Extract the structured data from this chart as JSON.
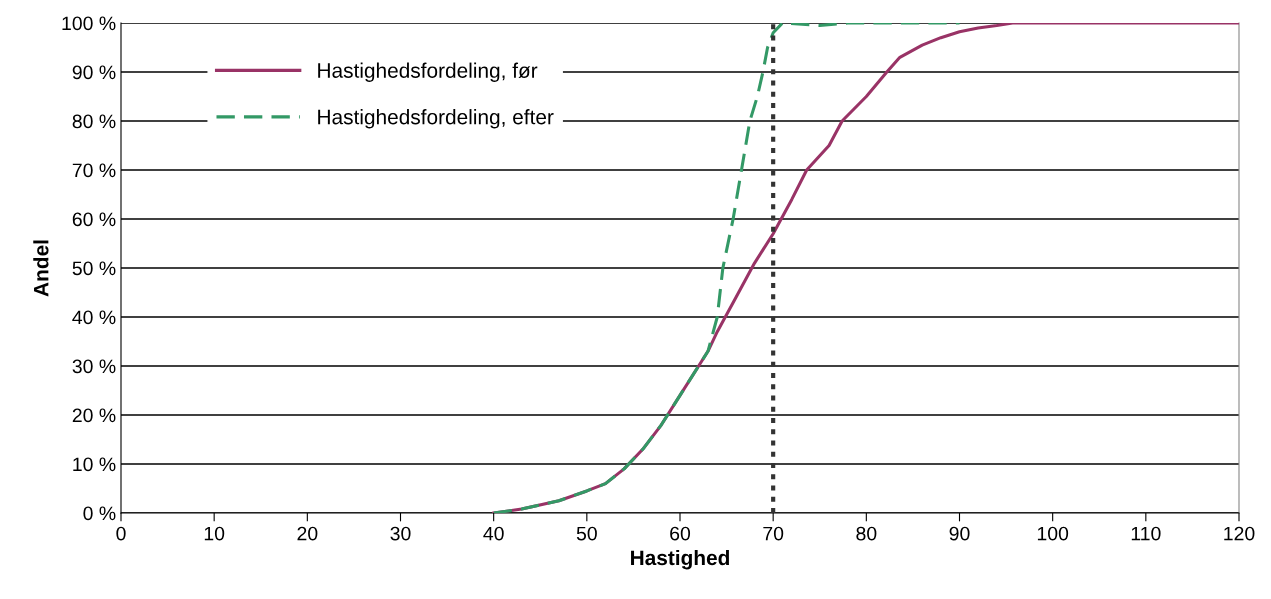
{
  "chart_data": {
    "type": "line",
    "xlabel": "Hastighed",
    "ylabel": "Andel",
    "xlim": [
      0,
      120
    ],
    "xticks": [
      0,
      10,
      20,
      30,
      40,
      50,
      60,
      70,
      80,
      90,
      100,
      110,
      120
    ],
    "ylim": [
      0,
      100
    ],
    "yticks": [
      {
        "value": 0,
        "label": "0 %"
      },
      {
        "value": 10,
        "label": "10 %"
      },
      {
        "value": 20,
        "label": "20 %"
      },
      {
        "value": 30,
        "label": "30 %"
      },
      {
        "value": 40,
        "label": "40 %"
      },
      {
        "value": 50,
        "label": "50 %"
      },
      {
        "value": 60,
        "label": "60 %"
      },
      {
        "value": 70,
        "label": "70 %"
      },
      {
        "value": 80,
        "label": "80 %"
      },
      {
        "value": 90,
        "label": "90 %"
      },
      {
        "value": 100,
        "label": "100 %"
      }
    ],
    "grid": "y",
    "legend": "top left",
    "series": [
      {
        "name": "Hastighedsfordeling, før",
        "color": "#993366",
        "line_style": "solid",
        "x": [
          40,
          43,
          47,
          50,
          52,
          54,
          56,
          58,
          60,
          62,
          63,
          64,
          66,
          68,
          70,
          72,
          73.6,
          76,
          77.4,
          80,
          82.2,
          83.6,
          86,
          88,
          90,
          92,
          94,
          95.7,
          120
        ],
        "values": [
          0,
          0.8,
          2.5,
          4.5,
          6,
          9,
          13,
          18,
          24,
          30,
          33,
          37,
          44,
          51,
          57,
          64,
          70,
          75,
          80,
          85,
          90,
          93,
          95.5,
          97,
          98.2,
          99,
          99.5,
          100,
          100
        ]
      },
      {
        "name": "Hastighedsfordeling, efter",
        "color": "#339966",
        "line_style": "dashed",
        "x": [
          40,
          43,
          47,
          50,
          52,
          54,
          56,
          58,
          60,
          62,
          63,
          64,
          64.6,
          65.7,
          66.6,
          67.5,
          68.3,
          68.9,
          69.4,
          70,
          71,
          75,
          78,
          90
        ],
        "values": [
          0,
          0.8,
          2.5,
          4.5,
          6,
          9,
          13,
          18,
          24,
          30,
          33,
          40,
          50,
          60,
          70,
          80,
          85,
          90,
          95,
          98,
          100,
          99.5,
          100,
          100
        ]
      }
    ],
    "ref_lines": [
      {
        "axis": "x",
        "value": 70,
        "color": "#333333",
        "line_style": "dotted"
      }
    ]
  }
}
